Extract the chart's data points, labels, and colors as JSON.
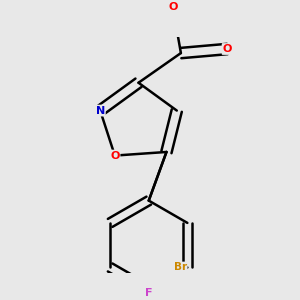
{
  "background_color": "#e8e8e8",
  "bond_color": "#000000",
  "atom_colors": {
    "O": "#ff0000",
    "N": "#0000cc",
    "Br": "#cc8800",
    "F": "#cc44cc",
    "C": "#000000"
  },
  "figsize": [
    3.0,
    3.0
  ],
  "dpi": 100
}
